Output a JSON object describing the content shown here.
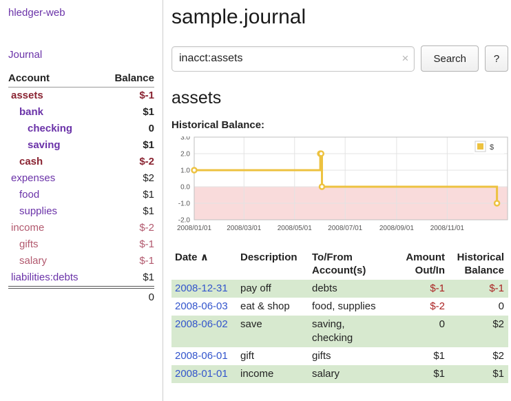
{
  "palette": {
    "purple": "#6a32a8",
    "maroon": "#8a2432",
    "rose": "#b2596e",
    "black": "#222222",
    "blue": "#3355cc",
    "red": "#aa2222",
    "green_row": "#d7e9cf",
    "gold": "#edc240"
  },
  "sidebar": {
    "app_title": "hledger-web",
    "journal_label": "Journal",
    "accounts_header": {
      "account": "Account",
      "balance": "Balance"
    },
    "accounts": [
      {
        "name": "assets",
        "balance": "$-1",
        "indent": 0,
        "bold": true,
        "name_color": "maroon",
        "balance_color": "maroon"
      },
      {
        "name": "bank",
        "balance": "$1",
        "indent": 1,
        "bold": true,
        "name_color": "purple",
        "balance_color": "black"
      },
      {
        "name": "checking",
        "balance": "0",
        "indent": 2,
        "bold": true,
        "name_color": "purple",
        "balance_color": "black"
      },
      {
        "name": "saving",
        "balance": "$1",
        "indent": 2,
        "bold": true,
        "name_color": "purple",
        "balance_color": "black"
      },
      {
        "name": "cash",
        "balance": "$-2",
        "indent": 1,
        "bold": true,
        "name_color": "maroon",
        "balance_color": "maroon"
      },
      {
        "name": "expenses",
        "balance": "$2",
        "indent": 0,
        "bold": false,
        "name_color": "purple",
        "balance_color": "black"
      },
      {
        "name": "food",
        "balance": "$1",
        "indent": 1,
        "bold": false,
        "name_color": "purple",
        "balance_color": "black"
      },
      {
        "name": "supplies",
        "balance": "$1",
        "indent": 1,
        "bold": false,
        "name_color": "purple",
        "balance_color": "black"
      },
      {
        "name": "income",
        "balance": "$-2",
        "indent": 0,
        "bold": false,
        "name_color": "rose",
        "balance_color": "rose"
      },
      {
        "name": "gifts",
        "balance": "$-1",
        "indent": 1,
        "bold": false,
        "name_color": "rose",
        "balance_color": "rose"
      },
      {
        "name": "salary",
        "balance": "$-1",
        "indent": 1,
        "bold": false,
        "name_color": "rose",
        "balance_color": "rose"
      },
      {
        "name": "liabilities:debts",
        "balance": "$1",
        "indent": 0,
        "bold": false,
        "name_color": "purple",
        "balance_color": "black"
      }
    ],
    "total": "0"
  },
  "main": {
    "title": "sample.journal",
    "search": {
      "value": "inacct:assets",
      "clear_icon": "×",
      "button_label": "Search",
      "help_label": "?"
    },
    "account_heading": "assets",
    "chart_label": "Historical Balance:"
  },
  "chart_data": {
    "type": "line",
    "title": "Historical Balance",
    "step": true,
    "series": [
      {
        "name": "$",
        "points": [
          [
            "2008-01-01",
            1
          ],
          [
            "2008-06-01",
            2
          ],
          [
            "2008-06-02",
            2
          ],
          [
            "2008-06-03",
            0
          ],
          [
            "2008-12-31",
            -1
          ]
        ]
      }
    ],
    "ylim": [
      -2,
      3
    ],
    "yticks": [
      3,
      2,
      1,
      0,
      -1,
      -2
    ],
    "xticks": [
      "2008/01/01",
      "2008/03/01",
      "2008/05/01",
      "2008/07/01",
      "2008/09/01",
      "2008/11/01"
    ],
    "legend_position": "top-right",
    "grid": true,
    "line_color": "#edc240",
    "negative_region_color": "#f9dbdb"
  },
  "register": {
    "headers": {
      "date": "Date",
      "sort_caret": "∧",
      "description": "Description",
      "account": "To/From Account(s)",
      "amount": "Amount Out/In",
      "balance": "Historical Balance"
    },
    "rows": [
      {
        "date": "2008-12-31",
        "description": "pay off",
        "accounts": [
          "debts"
        ],
        "amount": "$-1",
        "amount_color": "red",
        "balance": "$-1",
        "balance_color": "red",
        "shaded": true
      },
      {
        "date": "2008-06-03",
        "description": "eat & shop",
        "accounts": [
          "food, supplies"
        ],
        "amount": "$-2",
        "amount_color": "red",
        "balance": "0",
        "balance_color": "black",
        "shaded": false
      },
      {
        "date": "2008-06-02",
        "description": "save",
        "accounts": [
          "saving,",
          "checking"
        ],
        "amount": "0",
        "amount_color": "black",
        "balance": "$2",
        "balance_color": "black",
        "shaded": true
      },
      {
        "date": "2008-06-01",
        "description": "gift",
        "accounts": [
          "gifts"
        ],
        "amount": "$1",
        "amount_color": "black",
        "balance": "$2",
        "balance_color": "black",
        "shaded": false
      },
      {
        "date": "2008-01-01",
        "description": "income",
        "accounts": [
          "salary"
        ],
        "amount": "$1",
        "amount_color": "black",
        "balance": "$1",
        "balance_color": "black",
        "shaded": true
      }
    ]
  }
}
